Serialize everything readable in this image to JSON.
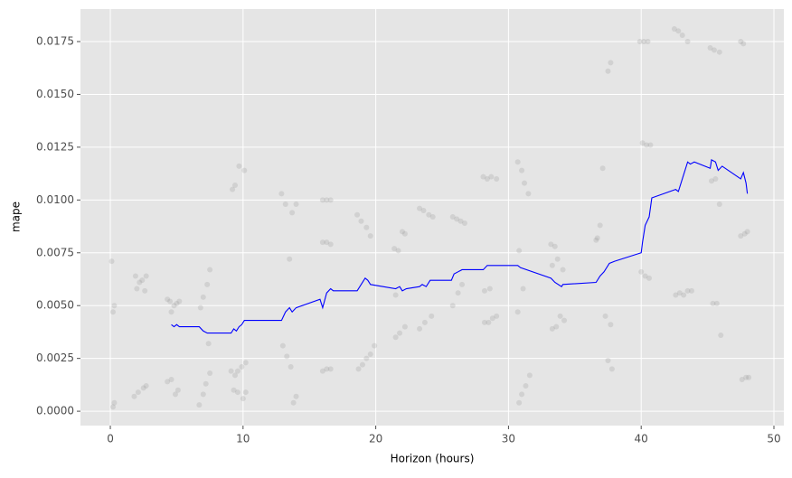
{
  "chart_data": {
    "type": "line",
    "xlabel": "Horizon (hours)",
    "ylabel": "mape",
    "xlim": [
      -2.25,
      50.75
    ],
    "ylim": [
      -0.00068,
      0.01904
    ],
    "xticks": [
      0,
      10,
      20,
      30,
      40,
      50
    ],
    "yticks": [
      {
        "value": 0,
        "label": "0.0000"
      },
      {
        "value": 0.0025,
        "label": "0.0025"
      },
      {
        "value": 0.005,
        "label": "0.0050"
      },
      {
        "value": 0.0075,
        "label": "0.0075"
      },
      {
        "value": 0.01,
        "label": "0.0100"
      },
      {
        "value": 0.0125,
        "label": "0.0125"
      },
      {
        "value": 0.015,
        "label": "0.0150"
      },
      {
        "value": 0.0175,
        "label": "0.0175"
      }
    ],
    "grid": true,
    "series": [
      {
        "type": "scatter",
        "color": "gray",
        "alpha": 0.2,
        "x": [
          0.1,
          0.2,
          0.3,
          0.2,
          0.3,
          1.9,
          2.0,
          2.2,
          2.4,
          2.7,
          2.6,
          1.8,
          2.1,
          2.5,
          2.7,
          4.3,
          4.5,
          4.6,
          4.8,
          5.0,
          5.2,
          4.3,
          4.6,
          4.9,
          5.1,
          6.8,
          7.0,
          7.3,
          7.5,
          7.4,
          6.7,
          7.0,
          7.2,
          7.5,
          9.2,
          9.4,
          9.7,
          10.1,
          9.1,
          9.4,
          9.6,
          9.9,
          10.2,
          9.3,
          9.6,
          10.0,
          10.2,
          12.9,
          13.2,
          13.7,
          14.0,
          13.5,
          13.0,
          13.3,
          13.6,
          13.8,
          14.0,
          16.0,
          16.3,
          16.6,
          16.0,
          16.3,
          16.6,
          16.0,
          16.3,
          16.6,
          18.6,
          18.9,
          19.3,
          19.6,
          18.7,
          19.0,
          19.3,
          19.6,
          19.9,
          21.4,
          21.7,
          22.0,
          22.2,
          21.5,
          21.8,
          22.2,
          21.5,
          23.3,
          23.6,
          24.0,
          24.3,
          23.3,
          23.7,
          24.2,
          25.8,
          26.1,
          26.4,
          26.7,
          25.8,
          26.2,
          26.5,
          28.1,
          28.4,
          28.7,
          29.1,
          28.2,
          28.5,
          28.8,
          29.1,
          28.2,
          28.6,
          30.7,
          31.0,
          31.2,
          31.5,
          30.8,
          31.1,
          30.7,
          30.8,
          31.0,
          31.3,
          31.6,
          33.2,
          33.5,
          33.3,
          33.7,
          34.1,
          33.3,
          33.6,
          33.9,
          34.2,
          36.6,
          36.7,
          36.9,
          37.1,
          37.5,
          37.7,
          37.3,
          37.7,
          37.5,
          37.8,
          39.9,
          40.2,
          40.5,
          40.1,
          40.4,
          40.7,
          40.0,
          40.3,
          40.6,
          42.5,
          42.8,
          43.1,
          43.5,
          42.6,
          42.9,
          43.2,
          43.5,
          43.8,
          45.2,
          45.5,
          45.9,
          45.3,
          45.6,
          45.9,
          45.4,
          45.7,
          46.0,
          47.5,
          47.7,
          47.5,
          47.8,
          48.0,
          47.6,
          47.9,
          48.1
        ],
        "values": [
          0.0071,
          0.0047,
          0.005,
          0.0002,
          0.0004,
          0.0064,
          0.0058,
          0.0061,
          0.0062,
          0.0064,
          0.0057,
          0.0007,
          0.0009,
          0.0011,
          0.0012,
          0.0053,
          0.0052,
          0.0047,
          0.005,
          0.0051,
          0.0052,
          0.0014,
          0.0015,
          0.0008,
          0.001,
          0.0049,
          0.0054,
          0.006,
          0.0067,
          0.0032,
          0.0003,
          0.0008,
          0.0013,
          0.0018,
          0.0105,
          0.0107,
          0.0116,
          0.0114,
          0.0019,
          0.0017,
          0.0019,
          0.0021,
          0.0023,
          0.001,
          0.0009,
          0.0006,
          0.0009,
          0.0103,
          0.0098,
          0.0094,
          0.0098,
          0.0072,
          0.0031,
          0.0026,
          0.0021,
          0.0004,
          0.0007,
          0.01,
          0.01,
          0.01,
          0.008,
          0.008,
          0.0079,
          0.0019,
          0.002,
          0.002,
          0.0093,
          0.009,
          0.0087,
          0.0083,
          0.002,
          0.0022,
          0.0025,
          0.0027,
          0.0031,
          0.0077,
          0.0076,
          0.0085,
          0.0084,
          0.0035,
          0.0037,
          0.004,
          0.0055,
          0.0096,
          0.0095,
          0.0093,
          0.0092,
          0.0039,
          0.0042,
          0.0045,
          0.0092,
          0.0091,
          0.009,
          0.0089,
          0.005,
          0.0056,
          0.006,
          0.0111,
          0.011,
          0.0111,
          0.011,
          0.0042,
          0.0042,
          0.0044,
          0.0045,
          0.0057,
          0.0058,
          0.0118,
          0.0114,
          0.0108,
          0.0103,
          0.0076,
          0.0058,
          0.0047,
          0.0004,
          0.0008,
          0.0012,
          0.0017,
          0.0079,
          0.0078,
          0.0069,
          0.0072,
          0.0067,
          0.0039,
          0.004,
          0.0045,
          0.0043,
          0.0081,
          0.0082,
          0.0088,
          0.0115,
          0.0161,
          0.0165,
          0.0045,
          0.0041,
          0.0024,
          0.002,
          0.0175,
          0.0175,
          0.0175,
          0.0127,
          0.0126,
          0.0126,
          0.0066,
          0.0064,
          0.0063,
          0.0181,
          0.018,
          0.0178,
          0.0175,
          0.0055,
          0.0056,
          0.0055,
          0.0057,
          0.0057,
          0.0172,
          0.0171,
          0.017,
          0.0109,
          0.011,
          0.0098,
          0.0051,
          0.0051,
          0.0036,
          0.0175,
          0.0174,
          0.0083,
          0.0084,
          0.0085,
          0.0015,
          0.0016,
          0.0016
        ]
      },
      {
        "type": "line",
        "color": "#0000ff",
        "x": [
          4.6,
          4.8,
          5.0,
          5.2,
          6.7,
          7.0,
          7.3,
          7.5,
          9.1,
          9.3,
          9.5,
          9.7,
          9.9,
          10.1,
          12.9,
          13.2,
          13.5,
          13.7,
          14.0,
          15.8,
          16.0,
          16.3,
          16.6,
          16.8,
          18.6,
          18.9,
          19.2,
          19.4,
          19.6,
          21.5,
          21.8,
          22.0,
          22.3,
          23.3,
          23.5,
          23.8,
          24.1,
          25.7,
          25.9,
          26.2,
          26.5,
          27.3,
          28.1,
          28.4,
          28.8,
          29.1,
          30.7,
          30.9,
          33.2,
          33.5,
          34.0,
          34.1,
          36.6,
          36.9,
          37.2,
          37.6,
          38.0,
          40.0,
          40.1,
          40.3,
          40.6,
          40.8,
          42.6,
          42.8,
          43.1,
          43.5,
          43.7,
          44.0,
          45.2,
          45.3,
          45.6,
          45.8,
          46.1,
          47.5,
          47.7,
          47.9,
          48.0
        ],
        "values": [
          0.0041,
          0.004,
          0.0041,
          0.004,
          0.004,
          0.0038,
          0.0037,
          0.0037,
          0.0037,
          0.0039,
          0.0038,
          0.004,
          0.0041,
          0.0043,
          0.0043,
          0.0047,
          0.0049,
          0.0047,
          0.0049,
          0.0053,
          0.0049,
          0.0056,
          0.0058,
          0.0057,
          0.0057,
          0.006,
          0.0063,
          0.0062,
          0.006,
          0.0058,
          0.0059,
          0.0057,
          0.0058,
          0.0059,
          0.006,
          0.0059,
          0.0062,
          0.0062,
          0.0065,
          0.0066,
          0.0067,
          0.0067,
          0.0067,
          0.0069,
          0.0069,
          0.0069,
          0.0069,
          0.0068,
          0.0063,
          0.0061,
          0.0059,
          0.006,
          0.0061,
          0.0064,
          0.0066,
          0.007,
          0.0071,
          0.0075,
          0.008,
          0.0088,
          0.0092,
          0.0101,
          0.0105,
          0.0104,
          0.011,
          0.0118,
          0.0117,
          0.0118,
          0.0115,
          0.0119,
          0.0118,
          0.0114,
          0.0116,
          0.011,
          0.0113,
          0.0108,
          0.0103
        ]
      }
    ]
  }
}
